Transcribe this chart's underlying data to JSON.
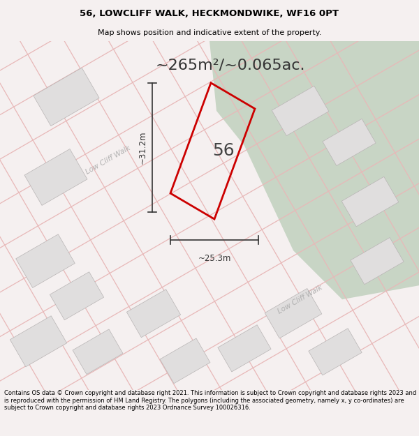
{
  "title": "56, LOWCLIFF WALK, HECKMONDWIKE, WF16 0PT",
  "subtitle": "Map shows position and indicative extent of the property.",
  "area_text": "~265m²/~0.065ac.",
  "dim_width": "~25.3m",
  "dim_height": "~31.2m",
  "label_number": "56",
  "footer": "Contains OS data © Crown copyright and database right 2021. This information is subject to Crown copyright and database rights 2023 and is reproduced with the permission of HM Land Registry. The polygons (including the associated geometry, namely x, y co-ordinates) are subject to Crown copyright and database rights 2023 Ordnance Survey 100026316.",
  "bg_color": "#f5f0f0",
  "map_bg": "#ffffff",
  "green_area_color": "#c8d5c5",
  "building_color": "#e0dede",
  "road_line_color": "#e8b8b8",
  "property_line_color": "#cc0000",
  "dim_line_color": "#333333",
  "title_color": "#000000",
  "footer_color": "#000000",
  "text_color": "#333333",
  "street_label_color": "#aaaaaa",
  "road_bg_color": "#f0e8e8"
}
